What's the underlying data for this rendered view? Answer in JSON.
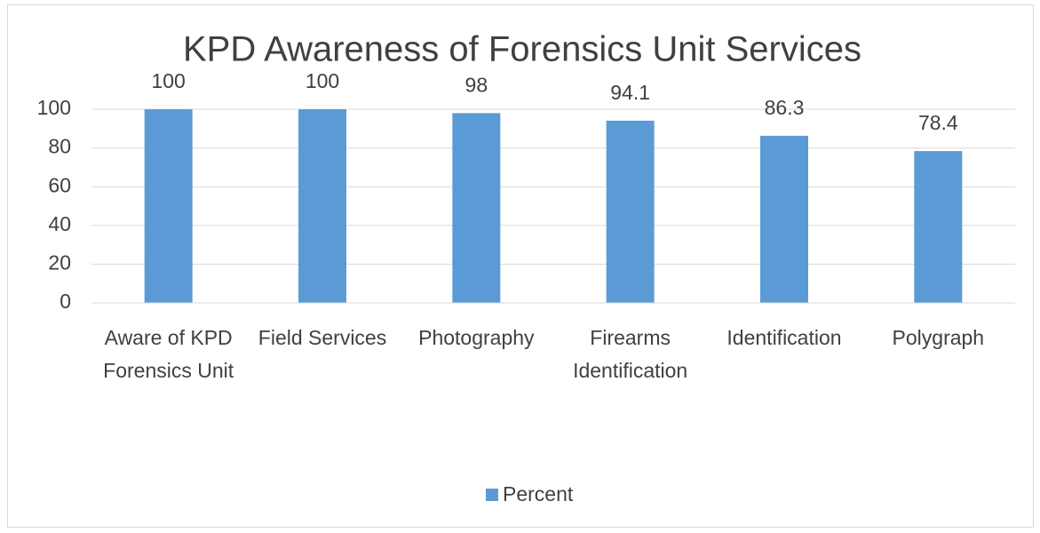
{
  "chart_data": {
    "type": "bar",
    "title": "KPD Awareness of Forensics Unit Services",
    "categories": [
      "Aware of KPD Forensics Unit",
      "Field Services",
      "Photography",
      "Firearms Identification",
      "Identification",
      "Polygraph"
    ],
    "series": [
      {
        "name": "Percent",
        "color": "#5b9bd5",
        "values": [
          100,
          100,
          98,
          94.1,
          86.3,
          78.4
        ]
      }
    ],
    "ylim": [
      0,
      100
    ],
    "yticks": [
      0,
      20,
      40,
      60,
      80,
      100
    ],
    "grid": true,
    "legend": "bottom"
  }
}
